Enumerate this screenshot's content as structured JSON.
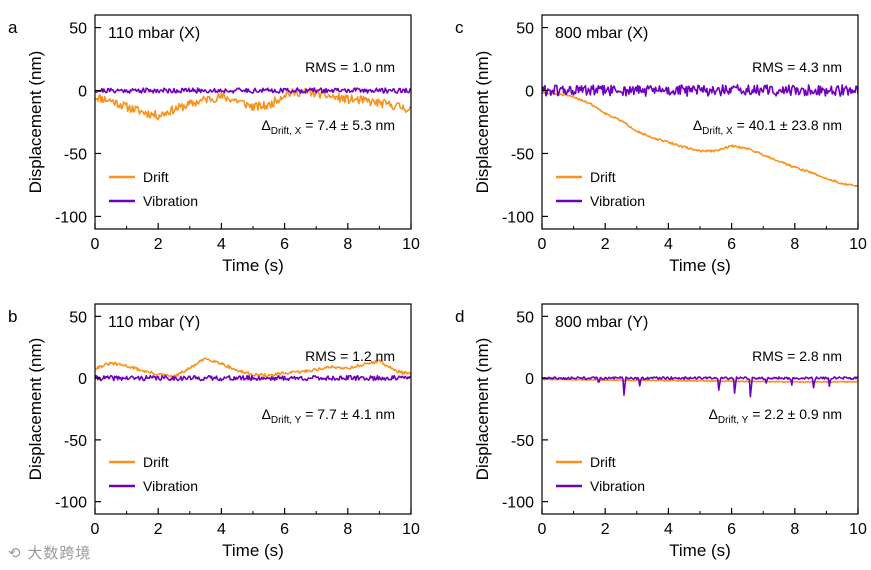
{
  "colors": {
    "drift": "#F7931E",
    "vibration": "#7000C0",
    "axis": "#000000"
  },
  "watermark": "⟲ 大数跨境",
  "chart_data": [
    {
      "panel": "a",
      "type": "line",
      "condition": "110 mbar (X)",
      "rms_text": "RMS = 1.0 nm",
      "drift_text": {
        "prefix": "Δ",
        "sub": "Drift, X",
        "suffix": " = 7.4 ± 5.3 nm"
      },
      "xlabel": "Time (s)",
      "ylabel": "Displacement (nm)",
      "xlim": [
        0,
        10
      ],
      "ylim": [
        -110,
        60
      ],
      "xticks": [
        0,
        2,
        4,
        6,
        8,
        10
      ],
      "yticks": [
        50,
        0,
        -50,
        -100
      ],
      "ytick_labels": [
        "50",
        "0",
        "-50",
        "-100"
      ],
      "legend": [
        "Drift",
        "Vibration"
      ],
      "series": [
        {
          "name": "Drift",
          "x": [
            0,
            0.5,
            1,
            1.5,
            2,
            2.5,
            3,
            3.5,
            4,
            4.5,
            5,
            5.5,
            6,
            6.5,
            7,
            7.5,
            8,
            8.5,
            9,
            9.5,
            10
          ],
          "y": [
            -5,
            -8,
            -13,
            -17,
            -20,
            -15,
            -11,
            -7,
            -5,
            -8,
            -13,
            -12,
            -3,
            -1,
            -2,
            -5,
            -7,
            -8,
            -10,
            -12,
            -15
          ],
          "noise": 3.5,
          "seed": 11
        },
        {
          "name": "Vibration",
          "x": [
            0,
            10
          ],
          "y": [
            0,
            0
          ],
          "noise": 2,
          "seed": 21
        }
      ]
    },
    {
      "panel": "b",
      "type": "line",
      "condition": "110 mbar (Y)",
      "rms_text": "RMS = 1.2 nm",
      "drift_text": {
        "prefix": "Δ",
        "sub": "Drift, Y",
        "suffix": " = 7.7 ± 4.1 nm"
      },
      "xlabel": "Time (s)",
      "ylabel": "Displacement (nm)",
      "xlim": [
        0,
        10
      ],
      "ylim": [
        -110,
        60
      ],
      "xticks": [
        0,
        2,
        4,
        6,
        8,
        10
      ],
      "yticks": [
        50,
        0,
        -50,
        -100
      ],
      "ytick_labels": [
        "50",
        "0",
        "-50",
        "-100"
      ],
      "legend": [
        "Drift",
        "Vibration"
      ],
      "series": [
        {
          "name": "Drift",
          "x": [
            0,
            0.5,
            1,
            1.5,
            2,
            2.5,
            3,
            3.5,
            4,
            4.5,
            5,
            5.5,
            6,
            6.5,
            7,
            7.5,
            8,
            8.5,
            9,
            9.5,
            10
          ],
          "y": [
            8,
            12,
            10,
            6,
            3,
            1,
            8,
            16,
            12,
            6,
            3,
            2,
            4,
            5,
            7,
            9,
            8,
            11,
            14,
            6,
            3
          ],
          "noise": 1.2,
          "seed": 31
        },
        {
          "name": "Vibration",
          "x": [
            0,
            10
          ],
          "y": [
            0,
            0
          ],
          "noise": 2,
          "seed": 41
        }
      ]
    },
    {
      "panel": "c",
      "type": "line",
      "condition": "800 mbar (X)",
      "rms_text": "RMS = 4.3 nm",
      "drift_text": {
        "prefix": "Δ",
        "sub": "Drift, X",
        "suffix": " = 40.1 ± 23.8 nm"
      },
      "xlabel": "Time (s)",
      "ylabel": "Displacement (nm)",
      "xlim": [
        0,
        10
      ],
      "ylim": [
        -110,
        60
      ],
      "xticks": [
        0,
        2,
        4,
        6,
        8,
        10
      ],
      "yticks": [
        50,
        0,
        -50,
        -100
      ],
      "ytick_labels": [
        "50",
        "0",
        "-50",
        "-100"
      ],
      "legend": [
        "Drift",
        "Vibration"
      ],
      "series": [
        {
          "name": "Drift",
          "x": [
            0,
            0.5,
            1,
            1.5,
            2,
            2.5,
            3,
            3.5,
            4,
            4.5,
            5,
            5.5,
            6,
            6.5,
            7,
            7.5,
            8,
            8.5,
            9,
            9.5,
            10
          ],
          "y": [
            -2,
            -3,
            -5,
            -10,
            -18,
            -24,
            -32,
            -38,
            -41,
            -45,
            -48,
            -48,
            -44,
            -46,
            -51,
            -56,
            -61,
            -65,
            -70,
            -74,
            -76
          ],
          "noise": 0.8,
          "seed": 51
        },
        {
          "name": "Vibration",
          "x": [
            0,
            10
          ],
          "y": [
            0,
            0
          ],
          "noise": 4.5,
          "seed": 61
        }
      ]
    },
    {
      "panel": "d",
      "type": "line",
      "condition": "800 mbar (Y)",
      "rms_text": "RMS = 2.8 nm",
      "drift_text": {
        "prefix": "Δ",
        "sub": "Drift, Y",
        "suffix": " = 2.2 ± 0.9 nm"
      },
      "xlabel": "Time (s)",
      "ylabel": "Displacement (nm)",
      "xlim": [
        0,
        10
      ],
      "ylim": [
        -110,
        60
      ],
      "xticks": [
        0,
        2,
        4,
        6,
        8,
        10
      ],
      "yticks": [
        50,
        0,
        -50,
        -100
      ],
      "ytick_labels": [
        "50",
        "0",
        "-50",
        "-100"
      ],
      "legend": [
        "Drift",
        "Vibration"
      ],
      "series": [
        {
          "name": "Drift",
          "x": [
            0,
            2,
            4,
            6,
            8,
            10
          ],
          "y": [
            -1,
            -1.5,
            -2,
            -2.5,
            -3,
            -3
          ],
          "noise": 0.4,
          "seed": 71
        },
        {
          "name": "Vibration",
          "x": [
            0,
            10
          ],
          "y": [
            0,
            0
          ],
          "noise": 1,
          "seed": 81,
          "spikes": [
            [
              1.8,
              -5
            ],
            [
              2.6,
              -16
            ],
            [
              3.1,
              -7
            ],
            [
              5.6,
              -12
            ],
            [
              6.1,
              -14
            ],
            [
              6.6,
              -17
            ],
            [
              7.1,
              -4
            ],
            [
              7.9,
              -6
            ],
            [
              8.6,
              -8
            ],
            [
              9.1,
              -7
            ]
          ]
        }
      ]
    }
  ]
}
